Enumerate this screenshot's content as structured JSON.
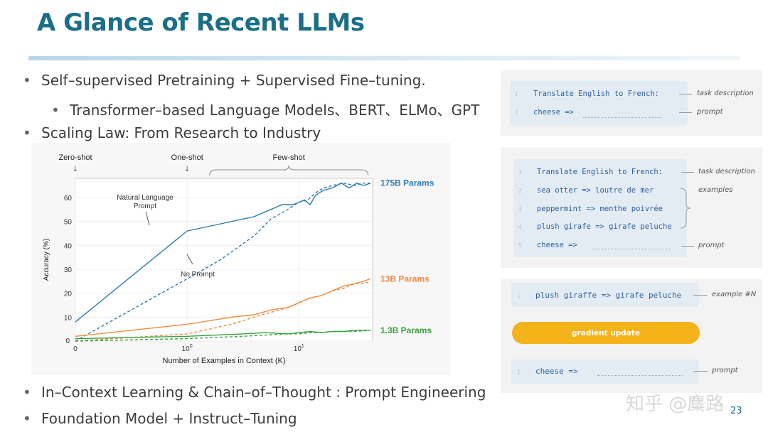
{
  "slide": {
    "title": "A Glance of Recent LLMs",
    "page_number": "23",
    "watermark": "知乎 @麋路"
  },
  "bullets": [
    {
      "text": "Self–supervised Pretraining + Supervised Fine–tuning.",
      "level": 1
    },
    {
      "text": "Transformer–based Language Models、BERT、ELMo、GPT",
      "level": 2
    },
    {
      "text": "Scaling Law: From Research to Industry",
      "level": 1
    },
    {
      "text": "In–Context Learning & Chain–of–Thought : Prompt Engineering",
      "level": 1
    },
    {
      "text": "Foundation Model + Instruct–Tuning",
      "level": 1
    }
  ],
  "bullet_glyph": "•",
  "chart_data": {
    "type": "line",
    "title": "",
    "xlabel": "Number of Examples in Context  (K)",
    "ylabel": "Accuracy (%)",
    "xscale": "log",
    "xlim_log": [
      -1,
      1.66
    ],
    "ylim": [
      0,
      68
    ],
    "yticks": [
      0,
      10,
      20,
      30,
      40,
      50,
      60
    ],
    "xticks": [
      {
        "label": "0",
        "log": -1
      },
      {
        "label": "10",
        "sup": "0",
        "log": 0
      },
      {
        "label": "10",
        "sup": "1",
        "log": 1
      }
    ],
    "shot_labels": [
      {
        "label": "Zero-shot",
        "arrow": "↓",
        "log": -1
      },
      {
        "label": "One-shot",
        "arrow": "↓",
        "log": 0
      }
    ],
    "few_shot_label": "Few-shot",
    "few_shot_range_log": [
      0.2,
      1.62
    ],
    "annotations": [
      {
        "text": "Natural Language",
        "text2": "Prompt"
      },
      {
        "text": "No Prompt"
      }
    ],
    "series": [
      {
        "name": "175B Params",
        "label": "175B Params",
        "color": "#2e7ab4",
        "style": "solid",
        "points": [
          [
            -1,
            8
          ],
          [
            0,
            46
          ],
          [
            0.3,
            49
          ],
          [
            0.6,
            52
          ],
          [
            0.75,
            55
          ],
          [
            0.85,
            57
          ],
          [
            0.95,
            57
          ],
          [
            1.05,
            59
          ],
          [
            1.1,
            57
          ],
          [
            1.15,
            61
          ],
          [
            1.22,
            63
          ],
          [
            1.3,
            64
          ],
          [
            1.38,
            66
          ],
          [
            1.45,
            64
          ],
          [
            1.52,
            66
          ],
          [
            1.58,
            65
          ],
          [
            1.64,
            66
          ]
        ]
      },
      {
        "name": "175B Params no prompt",
        "color": "#2e7ab4",
        "style": "dashed",
        "points": [
          [
            -1,
            0
          ],
          [
            0,
            26
          ],
          [
            0.3,
            34
          ],
          [
            0.6,
            44
          ],
          [
            0.75,
            51
          ],
          [
            0.9,
            55
          ],
          [
            1.0,
            58
          ],
          [
            1.08,
            59
          ],
          [
            1.15,
            62
          ],
          [
            1.22,
            64
          ],
          [
            1.3,
            65
          ],
          [
            1.4,
            66
          ],
          [
            1.5,
            65
          ],
          [
            1.58,
            66
          ],
          [
            1.64,
            66
          ]
        ]
      },
      {
        "name": "13B Params",
        "label": "13B Params",
        "color": "#f08a3c",
        "style": "solid",
        "points": [
          [
            -1,
            2
          ],
          [
            0,
            7
          ],
          [
            0.4,
            10
          ],
          [
            0.6,
            11
          ],
          [
            0.75,
            13
          ],
          [
            0.9,
            14
          ],
          [
            1.0,
            16
          ],
          [
            1.1,
            18
          ],
          [
            1.2,
            19
          ],
          [
            1.3,
            21
          ],
          [
            1.4,
            23
          ],
          [
            1.5,
            24
          ],
          [
            1.58,
            25
          ],
          [
            1.64,
            26
          ]
        ]
      },
      {
        "name": "13B Params no prompt",
        "color": "#f08a3c",
        "style": "dashed",
        "points": [
          [
            -1,
            0
          ],
          [
            0,
            3
          ],
          [
            0.4,
            7
          ],
          [
            0.6,
            10
          ],
          [
            0.75,
            12
          ],
          [
            0.9,
            14
          ],
          [
            1.0,
            16
          ],
          [
            1.1,
            18
          ],
          [
            1.2,
            19
          ],
          [
            1.3,
            21
          ],
          [
            1.4,
            22
          ],
          [
            1.5,
            24
          ],
          [
            1.58,
            24
          ],
          [
            1.64,
            25
          ]
        ]
      },
      {
        "name": "1.3B Params",
        "label": "1.3B Params",
        "color": "#3aa03c",
        "style": "solid",
        "points": [
          [
            -1,
            1
          ],
          [
            0,
            2
          ],
          [
            0.5,
            3
          ],
          [
            0.7,
            3.5
          ],
          [
            0.9,
            3
          ],
          [
            1.0,
            3.5
          ],
          [
            1.1,
            4
          ],
          [
            1.2,
            3.5
          ],
          [
            1.3,
            4
          ],
          [
            1.4,
            4
          ],
          [
            1.5,
            4.5
          ],
          [
            1.64,
            4.5
          ]
        ]
      },
      {
        "name": "1.3B Params no prompt",
        "color": "#3aa03c",
        "style": "dashed",
        "points": [
          [
            -1,
            0
          ],
          [
            0,
            1
          ],
          [
            0.5,
            2
          ],
          [
            0.7,
            2.5
          ],
          [
            0.9,
            3
          ],
          [
            1.0,
            3
          ],
          [
            1.1,
            3.5
          ],
          [
            1.2,
            3.5
          ],
          [
            1.3,
            4
          ],
          [
            1.4,
            4
          ],
          [
            1.5,
            4
          ],
          [
            1.64,
            4.5
          ]
        ]
      }
    ]
  },
  "panels": {
    "zero_shot": {
      "lines": [
        {
          "num": "1",
          "text": "Translate English to French:"
        },
        {
          "num": "2",
          "text": "cheese =>"
        }
      ],
      "labels": {
        "task": "task description",
        "prompt": "prompt"
      }
    },
    "few_shot": {
      "lines": [
        {
          "num": "1",
          "text": "Translate English to French:"
        },
        {
          "num": "2",
          "text": "sea otter => loutre de mer"
        },
        {
          "num": "3",
          "text": "peppermint => menthe poivrée"
        },
        {
          "num": "4",
          "text": "plush girafe => girafe peluche"
        },
        {
          "num": "5",
          "text": "cheese =>"
        }
      ],
      "labels": {
        "task": "task description",
        "examples": "examples",
        "prompt": "prompt"
      }
    },
    "fine_tune": {
      "example_line": {
        "num": "1",
        "text": "plush giraffe => girafe peluche"
      },
      "example_label": "example #N",
      "button_label": "gradient update",
      "prompt_line": {
        "num": "1",
        "text": "cheese =>"
      },
      "prompt_label": "prompt"
    }
  }
}
